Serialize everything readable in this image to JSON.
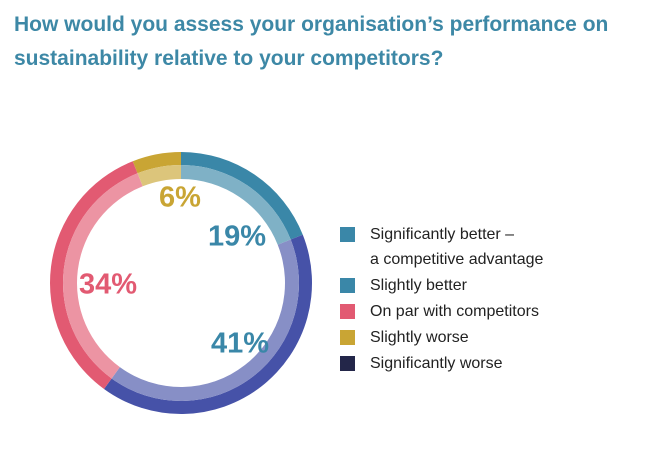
{
  "title": "How would you assess your organisation’s performance on sustainability relative to your competitors?",
  "chart_data": {
    "type": "pie",
    "style": "donut",
    "slices": [
      {
        "label": "Significantly better –\na competitive advantage",
        "value": 0,
        "color": "#3a87a8",
        "display": ""
      },
      {
        "label": "Slightly better",
        "value": 19,
        "color": "#3a87a8",
        "display": "19%"
      },
      {
        "label": "On par with competitors",
        "value": 34,
        "color": "#e25a72",
        "display": "34%"
      },
      {
        "label": "Slightly worse",
        "value": 6,
        "color": "#c9a534",
        "display": "6%"
      },
      {
        "label": "Significantly worse",
        "value": 41,
        "color": "#4652a8",
        "display": "41%"
      }
    ],
    "legend_position": "right",
    "legend_swatch_colors": [
      "#3a87a8",
      "#3a87a8",
      "#e25a72",
      "#c9a534",
      "#232649"
    ],
    "percent_label_colors": {
      "Slightly better": "#3a87a8",
      "On par with competitors": "#e25a72",
      "Slightly worse": "#c9a534",
      "Significantly worse": "#3a87a8"
    }
  }
}
